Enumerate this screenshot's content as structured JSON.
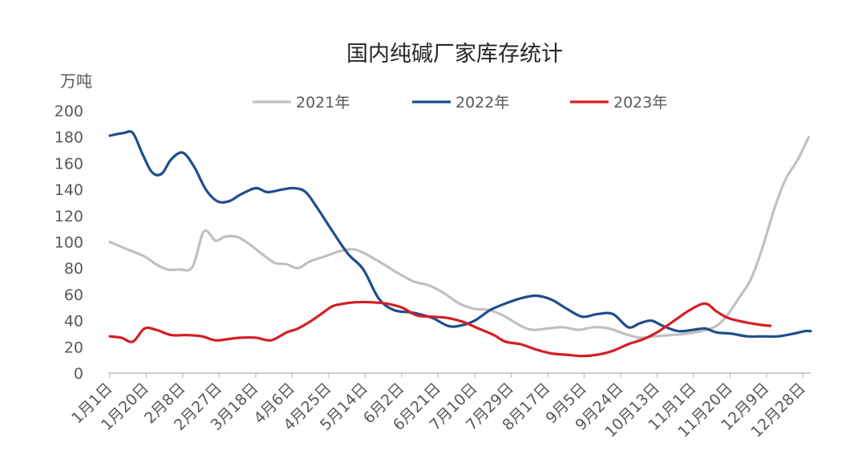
{
  "chart_data": {
    "type": "line",
    "title": "国内纯碱厂家库存统计",
    "ylabel": "万吨",
    "ylim": [
      0,
      200
    ],
    "yticks": [
      0,
      20,
      40,
      60,
      80,
      100,
      120,
      140,
      160,
      180,
      200
    ],
    "x_tick_labels": [
      "1月1日",
      "1月20日",
      "2月8日",
      "2月27日",
      "3月18日",
      "4月6日",
      "4月25日",
      "5月14日",
      "6月2日",
      "6月21日",
      "7月10日",
      "7月29日",
      "8月17日",
      "9月5日",
      "9月24日",
      "10月13日",
      "11月1日",
      "11月20日",
      "12月9日",
      "12月28日"
    ],
    "x_tick_days": [
      0,
      19,
      38,
      57,
      76,
      95,
      114,
      133,
      152,
      171,
      190,
      209,
      228,
      247,
      266,
      285,
      304,
      323,
      342,
      361
    ],
    "x_unit": "day of year (1月1日 = 0)",
    "xlim": [
      0,
      365
    ],
    "grid": false,
    "legend_position": "top",
    "series": [
      {
        "name": "2021年",
        "color": "#c0c0c0",
        "points": [
          [
            0,
            100
          ],
          [
            8,
            95
          ],
          [
            18,
            89
          ],
          [
            24,
            83
          ],
          [
            30,
            79
          ],
          [
            36,
            79
          ],
          [
            43,
            81
          ],
          [
            49,
            108
          ],
          [
            55,
            101
          ],
          [
            60,
            104
          ],
          [
            66,
            104
          ],
          [
            72,
            99
          ],
          [
            80,
            90
          ],
          [
            86,
            84
          ],
          [
            92,
            83
          ],
          [
            98,
            80
          ],
          [
            104,
            85
          ],
          [
            112,
            89
          ],
          [
            120,
            93
          ],
          [
            128,
            94
          ],
          [
            138,
            87
          ],
          [
            148,
            78
          ],
          [
            158,
            70
          ],
          [
            166,
            67
          ],
          [
            174,
            61
          ],
          [
            182,
            53
          ],
          [
            190,
            49
          ],
          [
            198,
            48
          ],
          [
            206,
            43
          ],
          [
            214,
            36
          ],
          [
            220,
            33
          ],
          [
            228,
            34
          ],
          [
            236,
            35
          ],
          [
            244,
            33
          ],
          [
            252,
            35
          ],
          [
            260,
            34
          ],
          [
            268,
            30
          ],
          [
            276,
            27
          ],
          [
            284,
            28
          ],
          [
            292,
            29
          ],
          [
            300,
            30
          ],
          [
            308,
            32
          ],
          [
            316,
            36
          ],
          [
            322,
            45
          ],
          [
            328,
            58
          ],
          [
            334,
            72
          ],
          [
            340,
            96
          ],
          [
            346,
            125
          ],
          [
            352,
            148
          ],
          [
            358,
            162
          ],
          [
            364,
            180
          ]
        ]
      },
      {
        "name": "2022年",
        "color": "#1f4e8c",
        "points": [
          [
            0,
            181
          ],
          [
            7,
            183
          ],
          [
            12,
            183
          ],
          [
            17,
            167
          ],
          [
            22,
            153
          ],
          [
            27,
            152
          ],
          [
            32,
            163
          ],
          [
            38,
            168
          ],
          [
            44,
            157
          ],
          [
            50,
            140
          ],
          [
            56,
            131
          ],
          [
            62,
            131
          ],
          [
            68,
            136
          ],
          [
            76,
            141
          ],
          [
            82,
            138
          ],
          [
            90,
            140
          ],
          [
            96,
            141
          ],
          [
            102,
            138
          ],
          [
            108,
            126
          ],
          [
            116,
            108
          ],
          [
            124,
            91
          ],
          [
            132,
            79
          ],
          [
            140,
            57
          ],
          [
            148,
            48
          ],
          [
            158,
            46
          ],
          [
            168,
            42
          ],
          [
            176,
            36
          ],
          [
            182,
            36
          ],
          [
            190,
            40
          ],
          [
            198,
            48
          ],
          [
            206,
            53
          ],
          [
            214,
            57
          ],
          [
            222,
            59
          ],
          [
            230,
            56
          ],
          [
            238,
            49
          ],
          [
            246,
            43
          ],
          [
            254,
            45
          ],
          [
            262,
            45
          ],
          [
            270,
            35
          ],
          [
            276,
            38
          ],
          [
            282,
            40
          ],
          [
            288,
            36
          ],
          [
            296,
            32
          ],
          [
            304,
            33
          ],
          [
            310,
            34
          ],
          [
            316,
            31
          ],
          [
            324,
            30
          ],
          [
            332,
            28
          ],
          [
            340,
            28
          ],
          [
            348,
            28
          ],
          [
            356,
            30
          ],
          [
            362,
            32
          ],
          [
            365,
            32
          ]
        ]
      },
      {
        "name": "2023年",
        "color": "#d41e24",
        "points": [
          [
            0,
            28
          ],
          [
            6,
            27
          ],
          [
            12,
            24
          ],
          [
            18,
            34
          ],
          [
            24,
            33
          ],
          [
            32,
            29
          ],
          [
            40,
            29
          ],
          [
            48,
            28
          ],
          [
            55,
            25
          ],
          [
            62,
            26
          ],
          [
            68,
            27
          ],
          [
            76,
            27
          ],
          [
            84,
            25
          ],
          [
            92,
            31
          ],
          [
            98,
            34
          ],
          [
            104,
            39
          ],
          [
            110,
            45
          ],
          [
            116,
            51
          ],
          [
            122,
            53
          ],
          [
            128,
            54
          ],
          [
            136,
            54
          ],
          [
            144,
            53
          ],
          [
            152,
            50
          ],
          [
            160,
            44
          ],
          [
            168,
            43
          ],
          [
            176,
            42
          ],
          [
            184,
            39
          ],
          [
            192,
            34
          ],
          [
            200,
            29
          ],
          [
            206,
            24
          ],
          [
            214,
            22
          ],
          [
            222,
            18
          ],
          [
            230,
            15
          ],
          [
            238,
            14
          ],
          [
            246,
            13
          ],
          [
            254,
            14
          ],
          [
            262,
            17
          ],
          [
            270,
            22
          ],
          [
            278,
            26
          ],
          [
            286,
            32
          ],
          [
            294,
            40
          ],
          [
            302,
            48
          ],
          [
            310,
            53
          ],
          [
            316,
            47
          ],
          [
            322,
            42
          ],
          [
            330,
            39
          ],
          [
            338,
            37
          ],
          [
            344,
            36
          ]
        ]
      }
    ]
  }
}
